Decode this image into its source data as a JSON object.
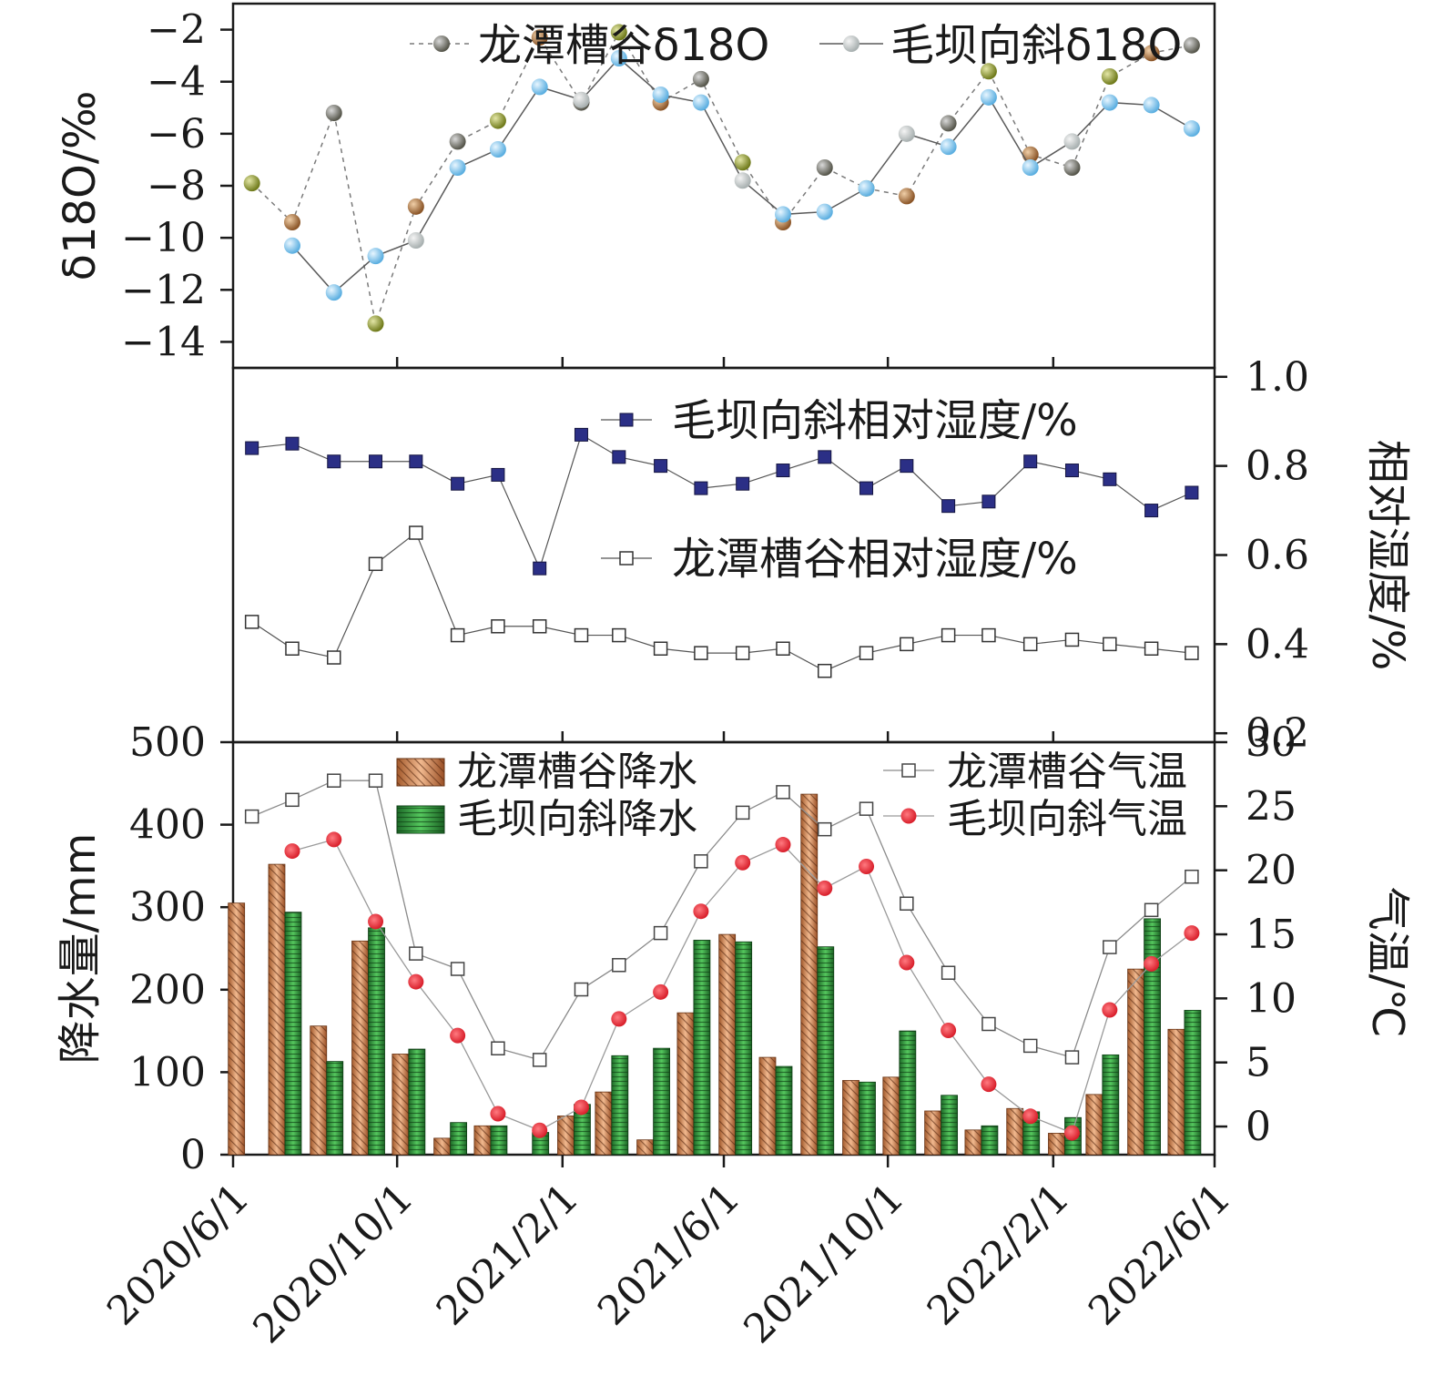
{
  "chart_data": [
    {
      "type": "line",
      "panel": "top",
      "ylabel": "δ18O/‰",
      "ylim": [
        -1,
        -15
      ],
      "yticks": [
        -14,
        -12,
        -10,
        -8,
        -6,
        -4,
        -2
      ],
      "series": [
        {
          "name": "龙潭槽谷δ18O",
          "x": [
            "2020/6/15",
            "2020/7/15",
            "2020/8/15",
            "2020/9/15",
            "2020/10/15",
            "2020/11/15",
            "2020/12/15",
            "2021/1/15",
            "2021/2/15",
            "2021/3/15",
            "2021/4/15",
            "2021/5/15",
            "2021/6/15",
            "2021/7/15",
            "2021/8/15",
            "2021/9/15",
            "2021/10/15",
            "2021/11/15",
            "2021/12/15",
            "2022/1/15",
            "2022/2/15",
            "2022/3/15",
            "2022/4/15",
            "2022/5/15"
          ],
          "values": [
            -7.9,
            -9.4,
            -5.2,
            -13.3,
            -8.8,
            -6.3,
            -5.5,
            -2.3,
            -4.8,
            -2.1,
            -4.8,
            -3.9,
            -7.1,
            -9.4,
            -7.3,
            -8.1,
            -8.4,
            -5.6,
            -3.6,
            -6.8,
            -7.3,
            -3.8,
            -2.9,
            -2.6
          ]
        },
        {
          "name": "毛坝向斜δ18O",
          "x": [
            "2020/7/15",
            "2020/8/15",
            "2020/9/15",
            "2020/10/15",
            "2020/11/15",
            "2020/12/15",
            "2021/1/15",
            "2021/2/15",
            "2021/3/15",
            "2021/4/15",
            "2021/5/15",
            "2021/6/15",
            "2021/7/15",
            "2021/8/15",
            "2021/9/15",
            "2021/10/15",
            "2021/11/15",
            "2021/12/15",
            "2022/1/15",
            "2022/2/15",
            "2022/3/15",
            "2022/4/15",
            "2022/5/15"
          ],
          "values": [
            -10.3,
            -12.1,
            -10.7,
            -10.1,
            -7.3,
            -6.6,
            -4.2,
            -4.7,
            -3.1,
            -4.5,
            -4.8,
            -7.8,
            -9.1,
            -9.0,
            -8.1,
            -6.0,
            -6.5,
            -4.6,
            -7.3,
            -6.3,
            -4.8,
            -4.9,
            -5.8
          ]
        }
      ],
      "legend": "top-right"
    },
    {
      "type": "line",
      "panel": "middle",
      "ylabel": "相对湿度/%",
      "ylim": [
        0.18,
        1.02
      ],
      "yticks": [
        "0.2",
        "0.4",
        "0.6",
        "0.8",
        "1.0"
      ],
      "x": [
        "2020/6/15",
        "2020/7/15",
        "2020/8/15",
        "2020/9/15",
        "2020/10/15",
        "2020/11/15",
        "2020/12/15",
        "2021/1/15",
        "2021/2/15",
        "2021/3/15",
        "2021/4/15",
        "2021/5/15",
        "2021/6/15",
        "2021/7/15",
        "2021/8/15",
        "2021/9/15",
        "2021/10/15",
        "2021/11/15",
        "2021/12/15",
        "2022/1/15",
        "2022/2/15",
        "2022/3/15",
        "2022/4/15",
        "2022/5/15"
      ],
      "series": [
        {
          "name": "毛坝向斜相对湿度/%",
          "values": [
            0.84,
            0.85,
            0.81,
            0.81,
            0.81,
            0.76,
            0.78,
            0.57,
            0.87,
            0.82,
            0.8,
            0.75,
            0.76,
            0.79,
            0.82,
            0.75,
            0.8,
            0.71,
            0.72,
            0.81,
            0.79,
            0.77,
            0.7,
            0.74
          ]
        },
        {
          "name": "龙潭槽谷相对湿度/%",
          "values": [
            0.45,
            0.39,
            0.37,
            0.58,
            0.65,
            0.42,
            0.44,
            0.44,
            0.42,
            0.42,
            0.39,
            0.38,
            0.38,
            0.39,
            0.34,
            0.38,
            0.4,
            0.42,
            0.42,
            0.4,
            0.41,
            0.4,
            0.39,
            0.38
          ]
        }
      ],
      "legend": "right"
    },
    {
      "type": "bar",
      "panel": "bottom",
      "ylabel": "降水量/mm",
      "y2label": "气温/℃",
      "ylim": [
        0,
        500
      ],
      "y2lim": [
        -2.2,
        30
      ],
      "yticks": [
        0,
        100,
        200,
        300,
        400,
        500
      ],
      "y2ticks": [
        0,
        5,
        10,
        15,
        20,
        25,
        30
      ],
      "xlim": [
        "2020/6/1",
        "2022/6/1"
      ],
      "xticks": [
        "2020/6/1",
        "2020/10/1",
        "2021/2/1",
        "2021/6/1",
        "2021/10/1",
        "2022/2/1",
        "2022/6/1"
      ],
      "x": [
        "2020/6/15",
        "2020/7/15",
        "2020/8/15",
        "2020/9/15",
        "2020/10/15",
        "2020/11/15",
        "2020/12/15",
        "2021/1/15",
        "2021/2/15",
        "2021/3/15",
        "2021/4/15",
        "2021/5/15",
        "2021/6/15",
        "2021/7/15",
        "2021/8/15",
        "2021/9/15",
        "2021/10/15",
        "2021/11/15",
        "2021/12/15",
        "2022/1/15",
        "2022/2/15",
        "2022/3/15",
        "2022/4/15",
        "2022/5/15"
      ],
      "series": [
        {
          "name": "龙潭槽谷降水",
          "kind": "bar",
          "values": [
            305,
            352,
            156,
            259,
            122,
            20,
            35,
            0,
            47,
            76,
            18,
            172,
            267,
            118,
            437,
            90,
            94,
            53,
            30,
            56,
            26,
            73,
            225,
            152
          ]
        },
        {
          "name": "毛坝向斜降水",
          "kind": "bar",
          "values": [
            0,
            294,
            113,
            275,
            128,
            39,
            35,
            27,
            61,
            120,
            129,
            260,
            258,
            107,
            252,
            88,
            150,
            72,
            35,
            52,
            45,
            121,
            286,
            175
          ]
        },
        {
          "name": "龙潭槽谷气温",
          "kind": "line",
          "values": [
            24.2,
            25.5,
            27.0,
            27.0,
            13.5,
            12.3,
            6.1,
            5.2,
            10.7,
            12.6,
            15.1,
            20.7,
            24.5,
            26.1,
            23.2,
            24.8,
            17.4,
            12.0,
            8.0,
            6.3,
            5.4,
            14.0,
            16.9,
            19.5
          ]
        },
        {
          "name": "毛坝向斜气温",
          "kind": "line",
          "values": [
            null,
            21.5,
            22.4,
            16.0,
            11.3,
            7.1,
            1.0,
            -0.3,
            1.5,
            8.4,
            10.5,
            16.8,
            20.6,
            22.0,
            18.6,
            20.3,
            12.8,
            7.5,
            3.3,
            0.8,
            -0.5,
            9.1,
            12.7,
            15.1
          ]
        }
      ],
      "legend": "top"
    }
  ],
  "colors": {
    "lt_hum": "#ffffff",
    "mb_hum": "#2b2f86",
    "lt_temp": "#ffffff",
    "mb_temp": "#e8303a",
    "lt_bar": "#d98a5c",
    "mb_bar": "#2f9a3c",
    "gray_line": "#7a7a7a"
  }
}
